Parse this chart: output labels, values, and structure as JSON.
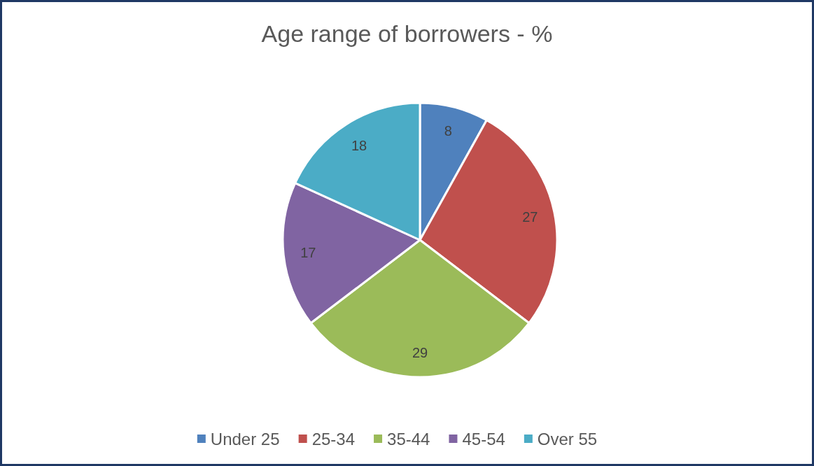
{
  "chart_data": {
    "type": "pie",
    "title": "Age range of borrowers - %",
    "categories": [
      "Under 25",
      "25-34",
      "35-44",
      "45-54",
      "Over 55"
    ],
    "values": [
      8,
      27,
      29,
      17,
      18
    ],
    "colors": [
      "#4f81bd",
      "#c0504d",
      "#9bbb59",
      "#8064a2",
      "#4bacc6"
    ],
    "data_labels": true,
    "legend": "bottom"
  }
}
